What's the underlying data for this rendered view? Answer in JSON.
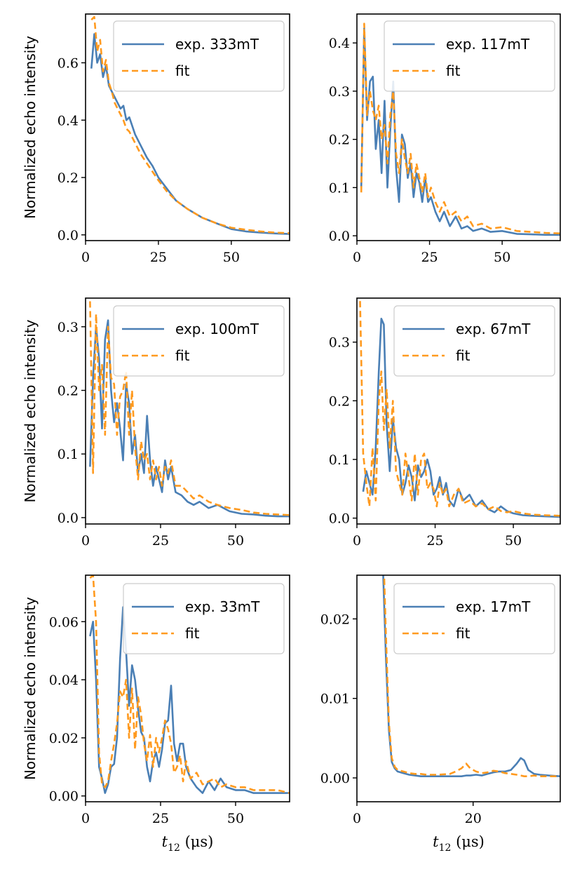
{
  "colors": {
    "exp": "#4a7fb5",
    "fit": "#ff9a1f",
    "axis": "#000000"
  },
  "figure": {
    "xlabel": "t12 (μs)",
    "ylabel": "Normalized echo intensity"
  },
  "chart_data": [
    {
      "type": "line",
      "title": "",
      "legend": [
        "exp. 333mT",
        "fit"
      ],
      "xlabel": "",
      "ylabel": "Normalized echo intensity",
      "xlim": [
        0,
        70
      ],
      "ylim": [
        -0.02,
        0.77
      ],
      "xticks": [
        0,
        25,
        50
      ],
      "yticks": [
        0.0,
        0.2,
        0.4,
        0.6
      ],
      "x": [
        2,
        3,
        4,
        5,
        6,
        7,
        8,
        9,
        10,
        11,
        12,
        13,
        14,
        15,
        17,
        19,
        21,
        23,
        25,
        28,
        31,
        35,
        40,
        45,
        50,
        55,
        60,
        65,
        70
      ],
      "series": [
        {
          "name": "exp. 333mT",
          "values": [
            0.58,
            0.7,
            0.6,
            0.63,
            0.55,
            0.59,
            0.52,
            0.5,
            0.48,
            0.46,
            0.44,
            0.45,
            0.4,
            0.41,
            0.35,
            0.31,
            0.27,
            0.24,
            0.2,
            0.16,
            0.12,
            0.09,
            0.06,
            0.04,
            0.02,
            0.012,
            0.008,
            0.005,
            0.003
          ]
        },
        {
          "name": "fit",
          "values": [
            0.75,
            0.76,
            0.64,
            0.68,
            0.57,
            0.61,
            0.53,
            0.5,
            0.46,
            0.44,
            0.42,
            0.4,
            0.37,
            0.36,
            0.32,
            0.28,
            0.25,
            0.22,
            0.19,
            0.15,
            0.12,
            0.09,
            0.06,
            0.04,
            0.025,
            0.018,
            0.012,
            0.008,
            0.006
          ]
        }
      ]
    },
    {
      "type": "line",
      "title": "",
      "legend": [
        "exp. 117mT",
        "fit"
      ],
      "xlabel": "",
      "ylabel": "",
      "xlim": [
        0,
        70
      ],
      "ylim": [
        -0.01,
        0.46
      ],
      "xticks": [
        0,
        25,
        50
      ],
      "yticks": [
        0.0,
        0.1,
        0.2,
        0.3,
        0.4
      ],
      "x": [
        1.5,
        2.5,
        3.5,
        4.5,
        5.5,
        6.5,
        7.5,
        8.5,
        9.5,
        10.5,
        11.5,
        12.5,
        13.5,
        14.5,
        15.5,
        16.5,
        17.5,
        18.5,
        19.5,
        20.5,
        21.5,
        22.5,
        23.5,
        24.5,
        25.5,
        27,
        28.5,
        30,
        32,
        34,
        36,
        38,
        40,
        43,
        46,
        50,
        55,
        60,
        65,
        70
      ],
      "series": [
        {
          "name": "exp. 117mT",
          "values": [
            0.1,
            0.43,
            0.24,
            0.32,
            0.33,
            0.18,
            0.24,
            0.13,
            0.28,
            0.1,
            0.22,
            0.32,
            0.14,
            0.07,
            0.21,
            0.19,
            0.12,
            0.15,
            0.08,
            0.13,
            0.11,
            0.07,
            0.12,
            0.07,
            0.08,
            0.05,
            0.03,
            0.05,
            0.02,
            0.04,
            0.015,
            0.02,
            0.01,
            0.015,
            0.008,
            0.01,
            0.004,
            0.003,
            0.002,
            0.002
          ]
        },
        {
          "name": "fit",
          "values": [
            0.09,
            0.44,
            0.25,
            0.3,
            0.26,
            0.24,
            0.27,
            0.2,
            0.23,
            0.15,
            0.25,
            0.3,
            0.17,
            0.13,
            0.2,
            0.16,
            0.13,
            0.17,
            0.1,
            0.15,
            0.12,
            0.09,
            0.13,
            0.08,
            0.1,
            0.07,
            0.05,
            0.07,
            0.04,
            0.05,
            0.03,
            0.04,
            0.02,
            0.025,
            0.015,
            0.018,
            0.01,
            0.008,
            0.006,
            0.005
          ]
        }
      ]
    },
    {
      "type": "line",
      "title": "",
      "legend": [
        "exp. 100mT",
        "fit"
      ],
      "xlabel": "",
      "ylabel": "Normalized echo intensity",
      "xlim": [
        0,
        68
      ],
      "ylim": [
        -0.01,
        0.345
      ],
      "xticks": [
        0,
        25,
        50
      ],
      "yticks": [
        0.0,
        0.1,
        0.2,
        0.3
      ],
      "x": [
        1.5,
        2.5,
        3.5,
        4.5,
        5.5,
        6.5,
        7.5,
        8.5,
        9.5,
        10.5,
        11.5,
        12.5,
        13.5,
        14.5,
        15.5,
        16.5,
        17.5,
        18.5,
        19.5,
        20.5,
        21.5,
        22.5,
        23.5,
        24.5,
        25.5,
        26.5,
        27.5,
        28.5,
        30,
        32,
        34,
        36,
        38,
        41,
        44,
        48,
        52,
        56,
        60,
        64,
        68
      ],
      "series": [
        {
          "name": "exp. 100mT",
          "values": [
            0.08,
            0.22,
            0.3,
            0.25,
            0.14,
            0.28,
            0.31,
            0.2,
            0.15,
            0.18,
            0.14,
            0.09,
            0.21,
            0.18,
            0.1,
            0.13,
            0.07,
            0.1,
            0.07,
            0.16,
            0.09,
            0.05,
            0.08,
            0.06,
            0.04,
            0.09,
            0.06,
            0.08,
            0.04,
            0.035,
            0.025,
            0.02,
            0.025,
            0.015,
            0.02,
            0.01,
            0.006,
            0.005,
            0.003,
            0.002,
            0.002
          ]
        },
        {
          "name": "fit",
          "values": [
            0.34,
            0.07,
            0.32,
            0.2,
            0.24,
            0.13,
            0.3,
            0.22,
            0.21,
            0.13,
            0.19,
            0.2,
            0.23,
            0.13,
            0.2,
            0.11,
            0.06,
            0.12,
            0.09,
            0.1,
            0.06,
            0.09,
            0.06,
            0.08,
            0.05,
            0.08,
            0.07,
            0.09,
            0.05,
            0.05,
            0.04,
            0.03,
            0.035,
            0.025,
            0.02,
            0.015,
            0.012,
            0.008,
            0.006,
            0.005,
            0.004
          ]
        }
      ]
    },
    {
      "type": "line",
      "title": "",
      "legend": [
        "exp. 67mT",
        "fit"
      ],
      "xlabel": "",
      "ylabel": "",
      "xlim": [
        0,
        65
      ],
      "ylim": [
        -0.01,
        0.375
      ],
      "xticks": [
        0,
        25,
        50
      ],
      "yticks": [
        0.0,
        0.1,
        0.2,
        0.3
      ],
      "x": [
        1,
        2,
        3,
        4,
        5,
        6,
        7,
        7.8,
        8.6,
        9.5,
        10.5,
        11.5,
        12.5,
        13.5,
        14.5,
        15.5,
        16.5,
        17.5,
        18.5,
        19.5,
        20.5,
        21.5,
        22.5,
        23.5,
        24.5,
        25.5,
        26.5,
        27.5,
        28.5,
        29.5,
        31,
        32.5,
        34,
        36,
        38,
        40,
        42,
        44,
        46,
        48,
        50,
        53,
        56,
        60,
        65
      ],
      "series": [
        {
          "name": "exp. 67mT",
          "values": [
            null,
            0.045,
            0.08,
            0.06,
            0.04,
            0.12,
            0.25,
            0.34,
            0.33,
            0.16,
            0.08,
            0.17,
            0.12,
            0.1,
            0.04,
            0.06,
            0.09,
            0.07,
            0.03,
            0.09,
            0.07,
            0.08,
            0.1,
            0.08,
            0.04,
            0.05,
            0.07,
            0.04,
            0.06,
            0.03,
            0.02,
            0.05,
            0.03,
            0.04,
            0.02,
            0.03,
            0.015,
            0.01,
            0.02,
            0.012,
            0.008,
            0.005,
            0.004,
            0.003,
            0.002
          ]
        },
        {
          "name": "fit",
          "values": [
            0.37,
            0.11,
            0.06,
            0.02,
            0.12,
            0.03,
            0.2,
            0.25,
            0.15,
            0.22,
            0.12,
            0.2,
            0.08,
            0.06,
            0.04,
            0.11,
            0.07,
            0.03,
            0.11,
            0.04,
            0.1,
            0.11,
            0.05,
            0.06,
            0.05,
            0.02,
            0.06,
            0.04,
            0.05,
            0.02,
            0.04,
            0.05,
            0.025,
            0.03,
            0.02,
            0.025,
            0.015,
            0.02,
            0.012,
            0.01,
            0.012,
            0.008,
            0.006,
            0.005,
            0.004
          ]
        }
      ]
    },
    {
      "type": "line",
      "title": "",
      "legend": [
        "exp. 33mT",
        "fit"
      ],
      "xlabel": "t12 (μs)",
      "ylabel": "Normalized echo intensity",
      "xlim": [
        0,
        68
      ],
      "ylim": [
        -0.002,
        0.076
      ],
      "xticks": [
        0,
        25,
        50
      ],
      "yticks": [
        0.0,
        0.02,
        0.04,
        0.06
      ],
      "x": [
        1.5,
        2.5,
        3.5,
        4.5,
        5.5,
        6.5,
        7.5,
        8.5,
        9.5,
        10.5,
        11.5,
        12.5,
        13.5,
        14.5,
        15.5,
        16.5,
        17.5,
        18.5,
        19.5,
        20.5,
        21.5,
        22.5,
        23.5,
        24.5,
        25.5,
        26.5,
        27.5,
        28.5,
        29.5,
        30.5,
        31.5,
        32.5,
        33.5,
        35,
        37,
        39,
        41,
        43,
        45,
        47,
        50,
        53,
        56,
        60,
        64,
        68
      ],
      "series": [
        {
          "name": "exp. 33mT",
          "values": [
            0.055,
            0.06,
            0.04,
            0.01,
            0.006,
            0.001,
            0.004,
            0.01,
            0.011,
            0.02,
            0.047,
            0.065,
            0.05,
            0.031,
            0.045,
            0.04,
            0.03,
            0.022,
            0.02,
            0.01,
            0.005,
            0.012,
            0.015,
            0.01,
            0.016,
            0.025,
            0.026,
            0.038,
            0.018,
            0.012,
            0.018,
            0.018,
            0.01,
            0.006,
            0.003,
            0.001,
            0.005,
            0.002,
            0.006,
            0.003,
            0.002,
            0.002,
            0.001,
            0.001,
            0.001,
            0.001
          ]
        },
        {
          "name": "fit",
          "values": [
            0.075,
            0.076,
            0.06,
            0.015,
            0.004,
            0.003,
            0.005,
            0.012,
            0.018,
            0.025,
            0.036,
            0.034,
            0.04,
            0.02,
            0.037,
            0.016,
            0.034,
            0.028,
            0.018,
            0.012,
            0.021,
            0.01,
            0.02,
            0.015,
            0.02,
            0.026,
            0.023,
            0.018,
            0.008,
            0.01,
            0.014,
            0.005,
            0.012,
            0.006,
            0.008,
            0.004,
            0.005,
            0.006,
            0.003,
            0.004,
            0.003,
            0.003,
            0.002,
            0.002,
            0.002,
            0.001
          ]
        }
      ]
    },
    {
      "type": "line",
      "title": "",
      "legend": [
        "exp. 17mT",
        "fit"
      ],
      "xlabel": "t12 (μs)",
      "ylabel": "",
      "xlim": [
        0,
        35
      ],
      "ylim": [
        -0.003,
        0.0255
      ],
      "xticks": [
        0,
        20
      ],
      "yticks": [
        0.0,
        0.01,
        0.02
      ],
      "x": [
        4.5,
        5,
        5.5,
        6,
        6.5,
        7,
        8,
        9,
        10,
        11,
        12,
        14,
        16,
        17,
        18,
        18.8,
        19.5,
        20.5,
        21.5,
        22.5,
        23.5,
        24.5,
        25.5,
        26.5,
        27.5,
        28.2,
        28.8,
        29.5,
        30.5,
        31.5,
        33,
        35
      ],
      "series": [
        {
          "name": "exp. 17mT",
          "values": [
            0.026,
            0.015,
            0.006,
            0.002,
            0.0012,
            0.0008,
            0.0006,
            0.0004,
            0.0003,
            0.0002,
            0.0002,
            0.0002,
            0.0002,
            0.0002,
            0.0002,
            0.0003,
            0.0003,
            0.0004,
            0.0003,
            0.0005,
            0.0007,
            0.0008,
            0.0008,
            0.001,
            0.0018,
            0.0025,
            0.0022,
            0.001,
            0.0005,
            0.0004,
            0.0003,
            0.0002
          ]
        },
        {
          "name": "fit",
          "values": [
            0.03,
            0.018,
            0.007,
            0.0025,
            0.0014,
            0.001,
            0.0008,
            0.0006,
            0.0005,
            0.0005,
            0.0004,
            0.0004,
            0.0005,
            0.0008,
            0.0012,
            0.0018,
            0.0012,
            0.0008,
            0.0006,
            0.0007,
            0.0009,
            0.0008,
            0.0006,
            0.0005,
            0.0004,
            0.0003,
            0.0002,
            0.0002,
            0.0003,
            0.0002,
            0.0002,
            0.0002
          ]
        }
      ]
    }
  ]
}
